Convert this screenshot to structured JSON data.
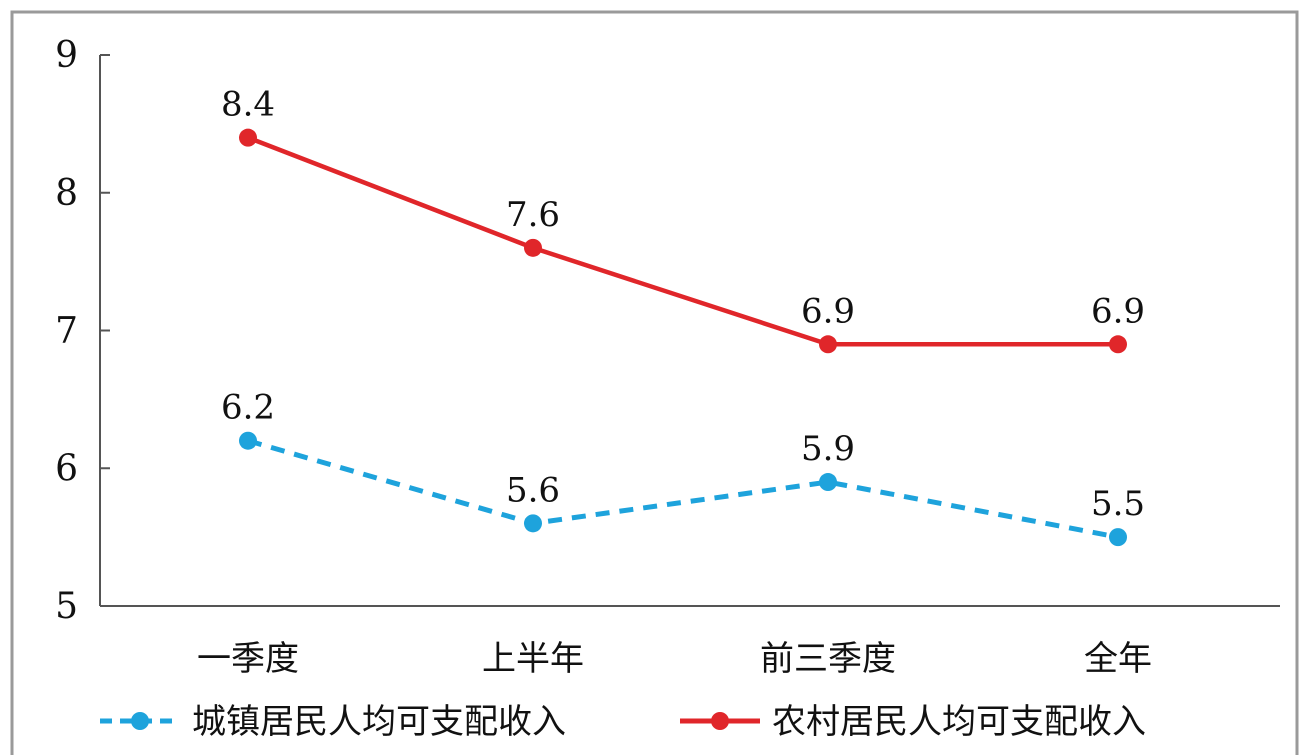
{
  "chart_data": {
    "type": "line",
    "title": "",
    "xlabel": "",
    "ylabel": "",
    "categories": [
      "一季度",
      "上半年",
      "前三季度",
      "全年"
    ],
    "ylim": [
      5,
      9
    ],
    "yticks": [
      5,
      6,
      7,
      8,
      9
    ],
    "grid": false,
    "legend_position": "bottom",
    "series": [
      {
        "name": "城镇居民人均可支配收入",
        "values": [
          6.2,
          5.6,
          5.9,
          5.5
        ],
        "labels": [
          "6.2",
          "5.6",
          "5.9",
          "5.5"
        ],
        "color": "#1ea3dc",
        "line_style": "dashed"
      },
      {
        "name": "农村居民人均可支配收入",
        "values": [
          8.4,
          7.6,
          6.9,
          6.9
        ],
        "labels": [
          "8.4",
          "7.6",
          "6.9",
          "6.9"
        ],
        "color": "#e0262a",
        "line_style": "solid"
      }
    ]
  }
}
